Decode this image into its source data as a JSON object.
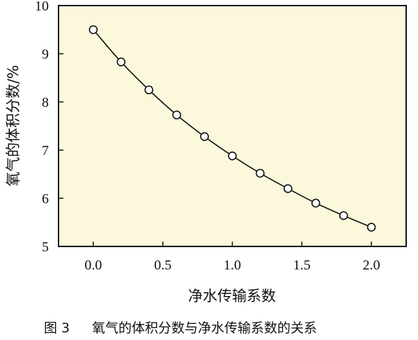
{
  "colors": {
    "plot_background": "#fbf8dc",
    "axis": "#111111",
    "curve": "#111111",
    "marker_fill": "#ffffff"
  },
  "chart_data": {
    "type": "line",
    "xlabel": "净水传输系数",
    "ylabel": "氧气的体积分数/%",
    "xlim": [
      -0.25,
      2.25
    ],
    "ylim": [
      5,
      10
    ],
    "x_ticks": [
      "0.0",
      "0.5",
      "1.0",
      "1.5",
      "2.0"
    ],
    "y_ticks": [
      "5",
      "6",
      "7",
      "8",
      "9",
      "10"
    ],
    "grid": false,
    "series": [
      {
        "marker": "open-circle",
        "x": [
          0.0,
          0.2,
          0.4,
          0.6,
          0.8,
          1.0,
          1.2,
          1.4,
          1.6,
          1.8,
          2.0
        ],
        "y": [
          9.5,
          8.83,
          8.25,
          7.73,
          7.28,
          6.88,
          6.52,
          6.2,
          5.9,
          5.64,
          5.4
        ]
      }
    ]
  },
  "caption": {
    "number": "图 3",
    "text": "氧气的体积分数与净水传输系数的关系"
  }
}
